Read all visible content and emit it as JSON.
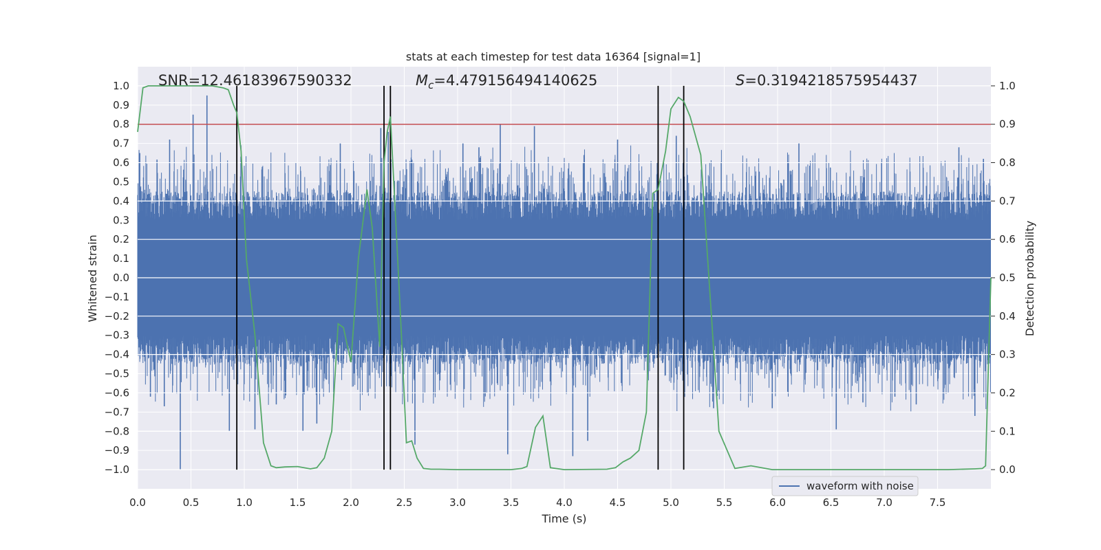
{
  "chart_data": {
    "type": "line",
    "title": "stats at each timestep for test data 16364 [signal=1]",
    "xlabel": "Time (s)",
    "ylabel": "Whitened strain",
    "y2label": "Detection probability",
    "xlim": [
      0.0,
      8.0
    ],
    "ylim": [
      -1.1,
      1.1
    ],
    "y2lim": [
      -0.05,
      1.05
    ],
    "x_ticks": [
      0.0,
      0.5,
      1.0,
      1.5,
      2.0,
      2.5,
      3.0,
      3.5,
      4.0,
      4.5,
      5.0,
      5.5,
      6.0,
      6.5,
      7.0,
      7.5
    ],
    "x_tick_labels": [
      "0.0",
      "0.5",
      "1.0",
      "1.5",
      "2.0",
      "2.5",
      "3.0",
      "3.5",
      "4.0",
      "4.5",
      "5.0",
      "5.5",
      "6.0",
      "6.5",
      "7.0",
      "7.5"
    ],
    "y_ticks": [
      1.0,
      0.9,
      0.8,
      0.7,
      0.6,
      0.5,
      0.4,
      0.3,
      0.2,
      0.1,
      0.0,
      -0.1,
      -0.2,
      -0.3,
      -0.4,
      -0.5,
      -0.6,
      -0.7,
      -0.8,
      -0.9,
      -1.0
    ],
    "y_tick_labels": [
      "1.0",
      "0.9",
      "0.8",
      "0.7",
      "0.6",
      "0.5",
      "0.4",
      "0.3",
      "0.2",
      "0.1",
      "0.0",
      "−0.1",
      "−0.2",
      "−0.3",
      "−0.4",
      "−0.5",
      "−0.6",
      "−0.7",
      "−0.8",
      "−0.9",
      "−1.0"
    ],
    "y2_ticks": [
      1.0,
      0.9,
      0.8,
      0.7,
      0.6,
      0.5,
      0.4,
      0.3,
      0.2,
      0.1,
      0.0
    ],
    "y2_tick_labels": [
      "1.0",
      "0.9",
      "0.8",
      "0.7",
      "0.6",
      "0.5",
      "0.4",
      "0.3",
      "0.2",
      "0.1",
      "0.0"
    ],
    "annotations": {
      "snr": "SNR=12.46183967590332",
      "mc_symbol": "M",
      "mc_subscript": "c",
      "mc_value": "=4.479156494140625",
      "s_symbol": "S",
      "s_value": "=0.3194218575954437"
    },
    "legend": {
      "label": "waveform with noise",
      "placement": "lower-right"
    },
    "threshold": 0.9,
    "vertical_markers": [
      0.93,
      2.31,
      2.37,
      4.88,
      5.12
    ],
    "waveform": {
      "name": "waveform with noise",
      "color": "#4c72b0",
      "n_samples": 2400,
      "band_upper": 0.45,
      "band_lower": -0.45,
      "core_half_width": 0.3,
      "spike_times": [
        0.02,
        0.4,
        0.52,
        0.65,
        0.86,
        1.55,
        2.28,
        2.35,
        3.47,
        3.4,
        3.72,
        4.08,
        4.22,
        4.88,
        5.05,
        6.55,
        7.93,
        0.12,
        0.25,
        1.1,
        1.68,
        2.6,
        3.05,
        5.95,
        6.8,
        7.3,
        7.85,
        0.3,
        1.3,
        1.9,
        3.2,
        4.5,
        5.4,
        6.2,
        7.1,
        7.7
      ],
      "spike_values": [
        0.65,
        -1.0,
        0.85,
        0.95,
        -0.8,
        -0.8,
        0.78,
        0.76,
        -0.92,
        0.8,
        0.79,
        -0.93,
        -0.85,
        -0.78,
        0.74,
        -0.79,
        0.62,
        -0.62,
        -0.67,
        -0.79,
        -0.76,
        -0.87,
        0.7,
        -0.68,
        -0.65,
        -0.66,
        -0.72,
        0.72,
        -0.66,
        0.7,
        0.68,
        0.72,
        -0.68,
        0.7,
        -0.62,
        0.68
      ]
    },
    "probability": {
      "name": "detection probability",
      "color": "#55a868",
      "x": [
        0.0,
        0.05,
        0.1,
        0.2,
        0.4,
        0.6,
        0.7,
        0.8,
        0.85,
        0.9,
        0.93,
        0.97,
        1.02,
        1.1,
        1.18,
        1.25,
        1.3,
        1.38,
        1.5,
        1.62,
        1.68,
        1.75,
        1.82,
        1.88,
        1.93,
        2.0,
        2.07,
        2.15,
        2.2,
        2.27,
        2.31,
        2.34,
        2.37,
        2.42,
        2.47,
        2.52,
        2.57,
        2.62,
        2.68,
        2.75,
        2.83,
        3.0,
        3.5,
        3.6,
        3.65,
        3.73,
        3.8,
        3.87,
        4.0,
        4.4,
        4.48,
        4.55,
        4.62,
        4.7,
        4.77,
        4.83,
        4.88,
        4.95,
        5.0,
        5.07,
        5.12,
        5.18,
        5.28,
        5.38,
        5.45,
        5.6,
        5.75,
        5.95,
        7.0,
        7.6,
        7.85,
        7.92,
        7.95,
        8.0
      ],
      "y": [
        0.88,
        0.995,
        1.0,
        1.0,
        1.0,
        1.0,
        1.0,
        0.995,
        0.99,
        0.95,
        0.93,
        0.83,
        0.55,
        0.35,
        0.07,
        0.01,
        0.005,
        0.007,
        0.008,
        0.002,
        0.005,
        0.03,
        0.1,
        0.38,
        0.37,
        0.28,
        0.55,
        0.73,
        0.63,
        0.32,
        0.8,
        0.88,
        0.92,
        0.65,
        0.37,
        0.07,
        0.075,
        0.03,
        0.003,
        0.001,
        0.001,
        0.0,
        0.0,
        0.003,
        0.008,
        0.11,
        0.14,
        0.005,
        0.0,
        0.001,
        0.005,
        0.02,
        0.03,
        0.05,
        0.15,
        0.72,
        0.73,
        0.83,
        0.94,
        0.97,
        0.96,
        0.92,
        0.82,
        0.4,
        0.1,
        0.003,
        0.01,
        0.0,
        0.0,
        0.0,
        0.002,
        0.003,
        0.01,
        0.5
      ]
    }
  }
}
